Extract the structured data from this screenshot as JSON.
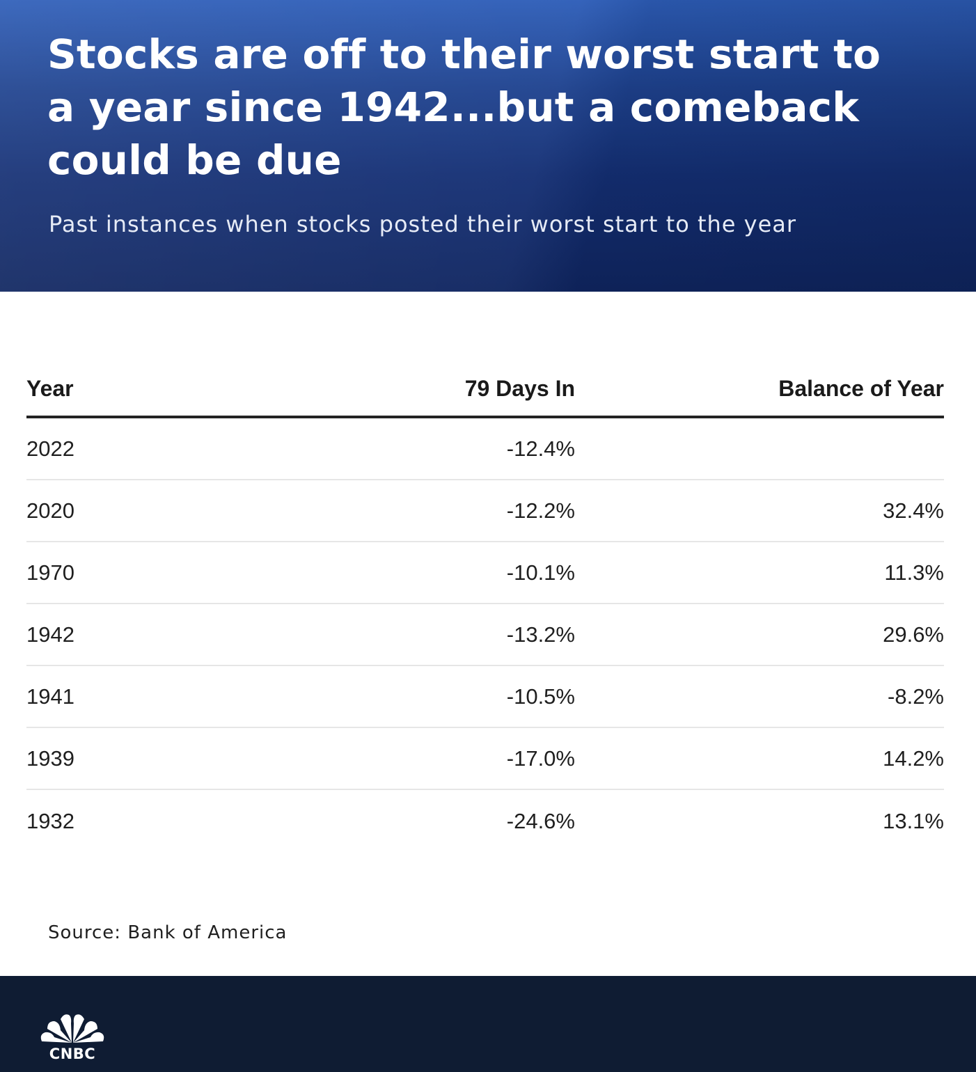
{
  "header": {
    "title": "Stocks are off to their worst start to a year since 1942...but a comeback could be due",
    "subtitle": "Past instances when stocks posted their worst start to the year"
  },
  "table": {
    "columns": [
      "Year",
      "79 Days In",
      "Balance of Year"
    ],
    "rows": [
      {
        "year": "2022",
        "days": "-12.4%",
        "balance": ""
      },
      {
        "year": "2020",
        "days": "-12.2%",
        "balance": "32.4%"
      },
      {
        "year": "1970",
        "days": "-10.1%",
        "balance": "11.3%"
      },
      {
        "year": "1942",
        "days": "-13.2%",
        "balance": "29.6%"
      },
      {
        "year": "1941",
        "days": "-10.5%",
        "balance": "-8.2%"
      },
      {
        "year": "1939",
        "days": "-17.0%",
        "balance": "14.2%"
      },
      {
        "year": "1932",
        "days": "-24.6%",
        "balance": "13.1%"
      }
    ]
  },
  "source": "Source: Bank of America",
  "footer": {
    "logo_text": "CNBC",
    "logo_icon": "cnbc-peacock-icon"
  },
  "colors": {
    "header_blue": "#1e428f",
    "footer_navy": "#0f1c33"
  }
}
